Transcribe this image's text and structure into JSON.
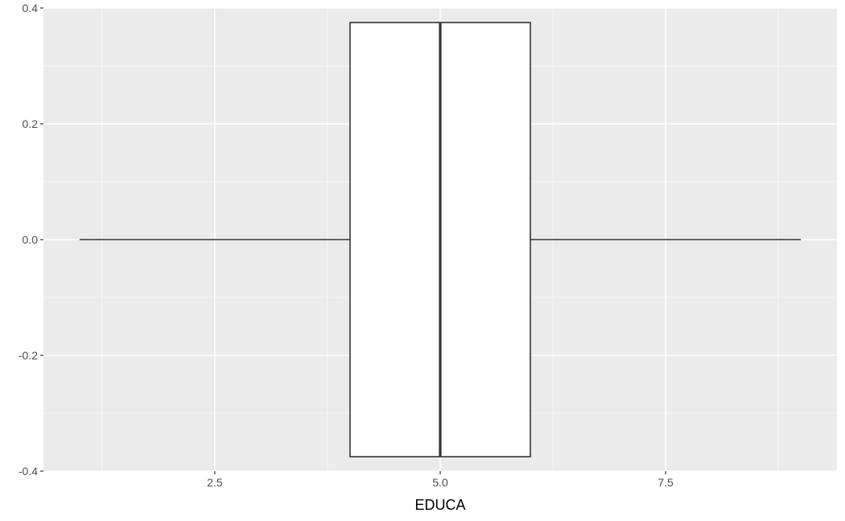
{
  "chart_data": {
    "type": "boxplot",
    "orientation": "horizontal",
    "xlabel": "EDUCA",
    "ylabel": "",
    "xlim": [
      0.6,
      9.4
    ],
    "ylim": [
      -0.4,
      0.4
    ],
    "x_ticks": [
      2.5,
      5.0,
      7.5
    ],
    "x_tick_labels": [
      "2.5",
      "5.0",
      "7.5"
    ],
    "y_ticks": [
      -0.4,
      -0.2,
      0.0,
      0.2,
      0.4
    ],
    "y_tick_labels": [
      "-0.4",
      "-0.2",
      "0.0",
      "0.2",
      "0.4"
    ],
    "grid": true,
    "box": {
      "min": 1,
      "q1": 4,
      "median": 5,
      "q3": 6,
      "max": 9,
      "y_center": 0.0,
      "y_half_width": 0.375
    },
    "colors": {
      "panel_background": "#ebebeb",
      "grid_major": "#ffffff",
      "grid_minor": "#f5f5f5",
      "box_fill": "#ffffff",
      "box_stroke": "#333333",
      "tick_text": "#4d4d4d",
      "axis_title": "#000000"
    }
  }
}
